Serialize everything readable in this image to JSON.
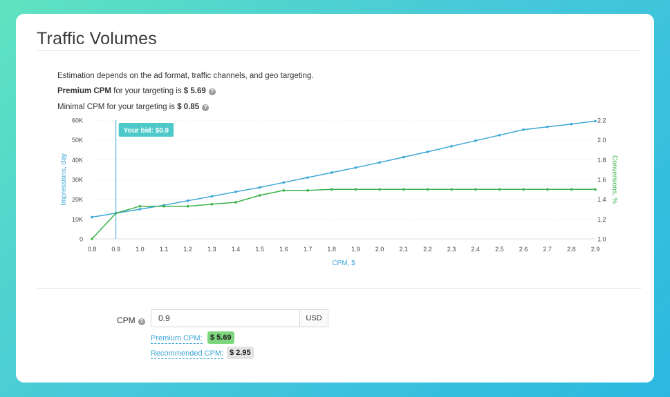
{
  "page": {
    "title": "Traffic Volumes",
    "description": "Estimation depends on the ad format, traffic channels, and geo targeting.",
    "premium_line": {
      "bold": "Premium CPM",
      "text": " for your targeting is ",
      "value": "$ 5.69"
    },
    "minimal_line": {
      "text": "Minimal CPM for your targeting is ",
      "value": "$ 0.85"
    }
  },
  "form": {
    "cpm_label": "CPM",
    "cpm_value": "0.9",
    "currency": "USD",
    "premium_link": "Premium CPM:",
    "premium_value": "$ 5.69",
    "recommended_link": "Recommended CPM:",
    "recommended_value": "$ 2.95"
  },
  "colors": {
    "impressions": "#3aa6d6",
    "conversions": "#3bb14a",
    "bid": "#4ec9c9",
    "premium_badge": "#7dd67d",
    "recommended_badge": "#e3e3e3"
  },
  "chart_data": {
    "type": "line",
    "xlabel": "CPM, $",
    "ylabel": "Impressions, day",
    "y2label": "Conversions, %",
    "x": [
      0.8,
      0.9,
      1.0,
      1.1,
      1.2,
      1.3,
      1.4,
      1.5,
      1.6,
      1.7,
      1.8,
      1.9,
      2.0,
      2.1,
      2.2,
      2.3,
      2.4,
      2.5,
      2.6,
      2.7,
      2.8,
      2.9
    ],
    "x_ticks": [
      "0.8",
      "0.9",
      "1.0",
      "1.1",
      "1.2",
      "1.3",
      "1.4",
      "1.5",
      "1.6",
      "1.7",
      "1.8",
      "1.9",
      "2.0",
      "2.1",
      "2.2",
      "2.3",
      "2.4",
      "2.5",
      "2.6",
      "2.7",
      "2.8",
      "2.9"
    ],
    "xlim": [
      0.8,
      2.9
    ],
    "ylim": [
      0,
      60000
    ],
    "y_ticks": [
      0,
      10000,
      20000,
      30000,
      40000,
      50000,
      60000
    ],
    "y_tick_labels": [
      "0",
      "10K",
      "20K",
      "30K",
      "40K",
      "50K",
      "60K"
    ],
    "y2lim": [
      1.0,
      2.2
    ],
    "y2_ticks": [
      1.0,
      1.2,
      1.4,
      1.6,
      1.8,
      2.0,
      2.2
    ],
    "y2_tick_labels": [
      "1.0",
      "1.2",
      "1.4",
      "1.6",
      "1.8",
      "2.0",
      "2.2"
    ],
    "grid": true,
    "bid": {
      "x": 0.9,
      "label": "Your bid: $0.9"
    },
    "series": [
      {
        "axis": "left",
        "values": [
          11000,
          13000,
          15000,
          17000,
          19300,
          21500,
          23800,
          26000,
          28500,
          31000,
          33500,
          36000,
          38600,
          41300,
          44000,
          46800,
          49600,
          52400,
          55200,
          56600,
          58000,
          59500
        ]
      },
      {
        "axis": "right",
        "values": [
          1.0,
          1.26,
          1.33,
          1.33,
          1.33,
          1.35,
          1.37,
          1.44,
          1.49,
          1.49,
          1.5,
          1.5,
          1.5,
          1.5,
          1.5,
          1.5,
          1.5,
          1.5,
          1.5,
          1.5,
          1.5,
          1.5
        ]
      }
    ]
  }
}
